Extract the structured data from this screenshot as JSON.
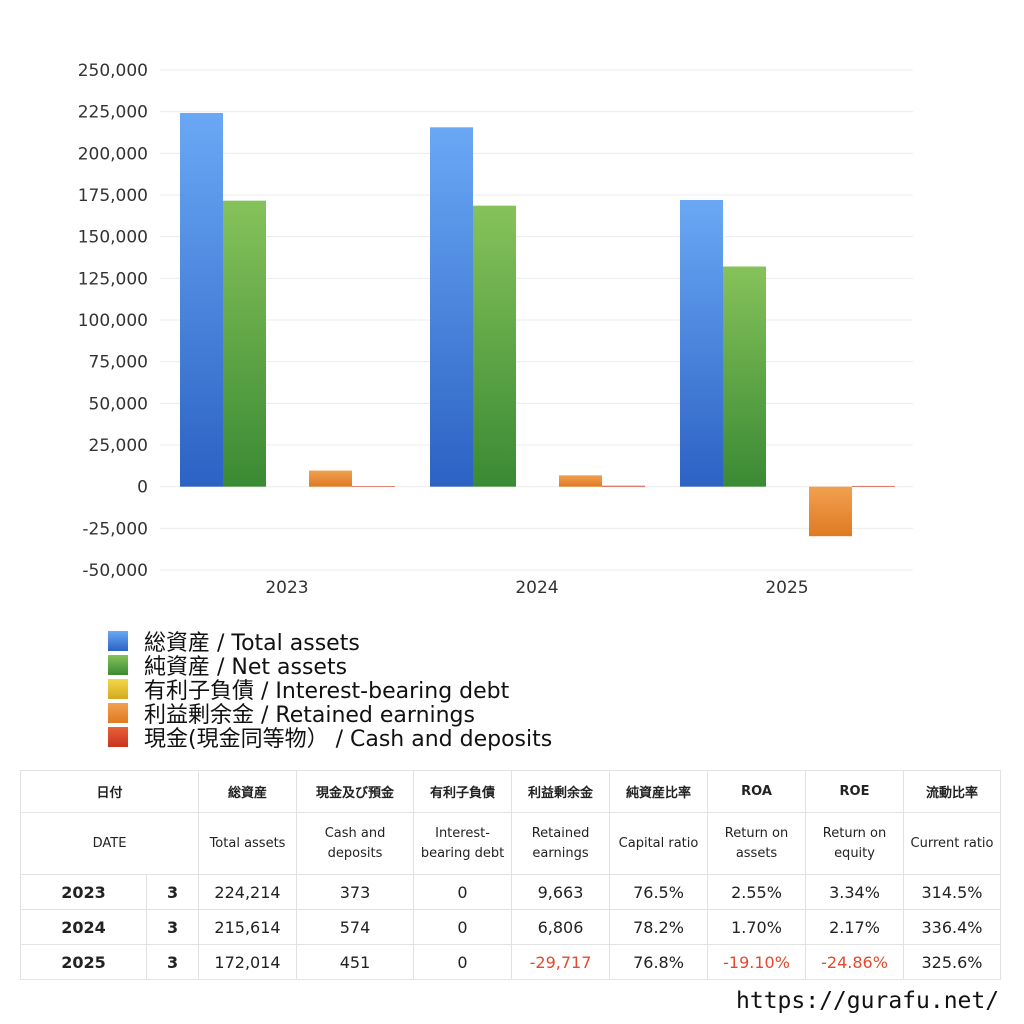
{
  "chart_data": {
    "type": "bar",
    "categories": [
      "2023",
      "2024",
      "2025"
    ],
    "ylim": [
      -50000,
      250000
    ],
    "yticks": [
      "250,000",
      "225,000",
      "200,000",
      "175,000",
      "150,000",
      "125,000",
      "100,000",
      "75,000",
      "50,000",
      "25,000",
      "0",
      "-25,000",
      "-50,000"
    ],
    "series": [
      {
        "name": "総資産 / Total assets",
        "color": "#3b78d8",
        "values": [
          224214,
          215614,
          172014
        ]
      },
      {
        "name": "純資産 / Net assets",
        "color": "#4e9e3e",
        "values": [
          171600,
          168600,
          132100
        ]
      },
      {
        "name": "有利子負債 / Interest-bearing debt",
        "color": "#e6c229",
        "values": [
          0,
          0,
          0
        ]
      },
      {
        "name": "利益剰余金 / Retained earnings",
        "color": "#e8872e",
        "values": [
          9663,
          6806,
          -29717
        ]
      },
      {
        "name": "現金(現金同等物）  /  Cash and deposits",
        "color": "#d9442b",
        "values": [
          373,
          574,
          451
        ]
      }
    ]
  },
  "legend": {
    "items": [
      {
        "label": "総資産 / Total assets",
        "color": "#3b78d8"
      },
      {
        "label": "純資産 / Net assets",
        "color": "#4e9e3e"
      },
      {
        "label": "有利子負債 / Interest-bearing debt",
        "color": "#e6c229"
      },
      {
        "label": "利益剰余金 / Retained earnings",
        "color": "#e8872e"
      },
      {
        "label": "現金(現金同等物）  /  Cash and deposits",
        "color": "#d9442b"
      }
    ]
  },
  "table": {
    "header_jp": [
      "日付",
      "総資産",
      "現金及び預金",
      "有利子負債",
      "利益剰余金",
      "純資産比率",
      "ROA",
      "ROE",
      "流動比率"
    ],
    "header_en": [
      "DATE",
      "Total assets",
      "Cash and deposits",
      "Interest-bearing debt",
      "Retained earnings",
      "Capital ratio",
      "Return on assets",
      "Return on equity",
      "Current ratio"
    ],
    "rows": [
      {
        "year": "2023",
        "month": "3",
        "total_assets": "224,214",
        "cash": "373",
        "debt": "0",
        "retained": "9,663",
        "capital_ratio": "76.5%",
        "roa": "2.55%",
        "roe": "3.34%",
        "current_ratio": "314.5%"
      },
      {
        "year": "2024",
        "month": "3",
        "total_assets": "215,614",
        "cash": "574",
        "debt": "0",
        "retained": "6,806",
        "capital_ratio": "78.2%",
        "roa": "1.70%",
        "roe": "2.17%",
        "current_ratio": "336.4%"
      },
      {
        "year": "2025",
        "month": "3",
        "total_assets": "172,014",
        "cash": "451",
        "debt": "0",
        "retained": "-29,717",
        "capital_ratio": "76.8%",
        "roa": "-19.10%",
        "roe": "-24.86%",
        "current_ratio": "325.6%"
      }
    ]
  },
  "footer": {
    "url": "https://gurafu.net/"
  }
}
